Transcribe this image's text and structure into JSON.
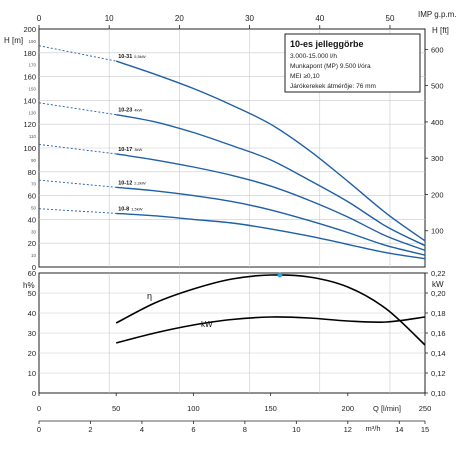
{
  "chart_data": [
    {
      "type": "line",
      "units": {
        "top_label": "IMP g.p.m.",
        "left_label": "H [m]",
        "right_label": "H [ft]"
      },
      "info_box": {
        "title": "10-es jelleggörbe",
        "lines": [
          "3.000-15.000 l/h",
          "Munkapont (MP) 9.500 l/óra",
          "MEI ≥0,10",
          "Járókerekek átmérője: 76 mm"
        ]
      },
      "axes": {
        "flow_lmin": {
          "min": 0,
          "max": 250
        },
        "head_m": {
          "min": 0,
          "max": 200,
          "ticks": [
            0,
            20,
            40,
            60,
            80,
            100,
            120,
            140,
            160,
            180,
            200
          ],
          "minor_ticks": [
            10,
            30,
            50,
            70,
            90,
            110,
            130,
            150,
            170,
            190
          ]
        },
        "head_ft": {
          "ticks": [
            100,
            200,
            300,
            400,
            500,
            600
          ]
        },
        "imp_gpm": {
          "ticks": [
            0,
            10,
            20,
            30,
            40,
            50
          ]
        }
      },
      "series": [
        {
          "name": "10-31",
          "power": "5,5kW",
          "color": "#1f5fa6",
          "x": [
            0,
            50,
            75,
            100,
            125,
            150,
            175,
            200,
            225,
            250
          ],
          "y": [
            186,
            173,
            162,
            150,
            136,
            120,
            98,
            72,
            45,
            22
          ],
          "dashed_until": 50
        },
        {
          "name": "10-23",
          "power": "4kW",
          "color": "#1f5fa6",
          "x": [
            0,
            50,
            75,
            100,
            125,
            150,
            175,
            200,
            225,
            250
          ],
          "y": [
            138,
            128,
            122,
            113,
            102,
            90,
            73,
            55,
            34,
            18
          ],
          "dashed_until": 50
        },
        {
          "name": "10-17",
          "power": "3kW",
          "color": "#1f5fa6",
          "x": [
            0,
            50,
            75,
            100,
            125,
            150,
            175,
            200,
            225,
            250
          ],
          "y": [
            103,
            95,
            90,
            84,
            77,
            68,
            56,
            42,
            26,
            14
          ],
          "dashed_until": 50
        },
        {
          "name": "10-12",
          "power": "2,2kW",
          "color": "#1f5fa6",
          "x": [
            0,
            50,
            75,
            100,
            125,
            150,
            175,
            200,
            225,
            250
          ],
          "y": [
            73,
            67,
            64,
            60,
            55,
            48,
            39,
            29,
            18,
            10
          ],
          "dashed_until": 50
        },
        {
          "name": "10-8",
          "power": "1,5kW",
          "color": "#1f5fa6",
          "x": [
            0,
            50,
            75,
            100,
            125,
            150,
            175,
            200,
            225,
            250
          ],
          "y": [
            49,
            45,
            43,
            40,
            37,
            32,
            26,
            19,
            12,
            7
          ],
          "dashed_until": 50
        }
      ]
    },
    {
      "type": "line",
      "units": {
        "left_label": "h%",
        "right_label": "kW",
        "x_label_lmin": "Q [l/min]",
        "x_label_m3h": "m³/h"
      },
      "axes": {
        "efficiency_pct": {
          "min": 0,
          "max": 60,
          "ticks": [
            0,
            10,
            20,
            30,
            40,
            50,
            60
          ]
        },
        "power_kw": {
          "min": 0.1,
          "max": 0.22,
          "ticks": [
            "0,10",
            "0,12",
            "0,14",
            "0,16",
            "0,18",
            "0,20",
            "0,22"
          ]
        },
        "flow_lmin": {
          "ticks": [
            0,
            50,
            100,
            150,
            200,
            250
          ]
        },
        "flow_m3h": {
          "ticks": [
            0,
            2,
            4,
            6,
            8,
            10,
            12,
            14,
            15
          ]
        }
      },
      "series": [
        {
          "name": "η",
          "unit": "%",
          "color": "#000000",
          "x": [
            50,
            75,
            100,
            125,
            150,
            175,
            200,
            225,
            250
          ],
          "y": [
            35,
            45,
            52,
            57,
            59,
            58,
            53,
            42,
            24
          ]
        },
        {
          "name": "kW",
          "unit": "kW",
          "color": "#000000",
          "x": [
            50,
            75,
            100,
            125,
            150,
            175,
            200,
            225,
            250
          ],
          "y": [
            0.15,
            0.16,
            0.168,
            0.1735,
            0.176,
            0.175,
            0.172,
            0.171,
            0.176
          ]
        }
      ],
      "best_efficiency_point": {
        "x": 156,
        "y": 59,
        "color": "#2aa8e0"
      }
    }
  ]
}
